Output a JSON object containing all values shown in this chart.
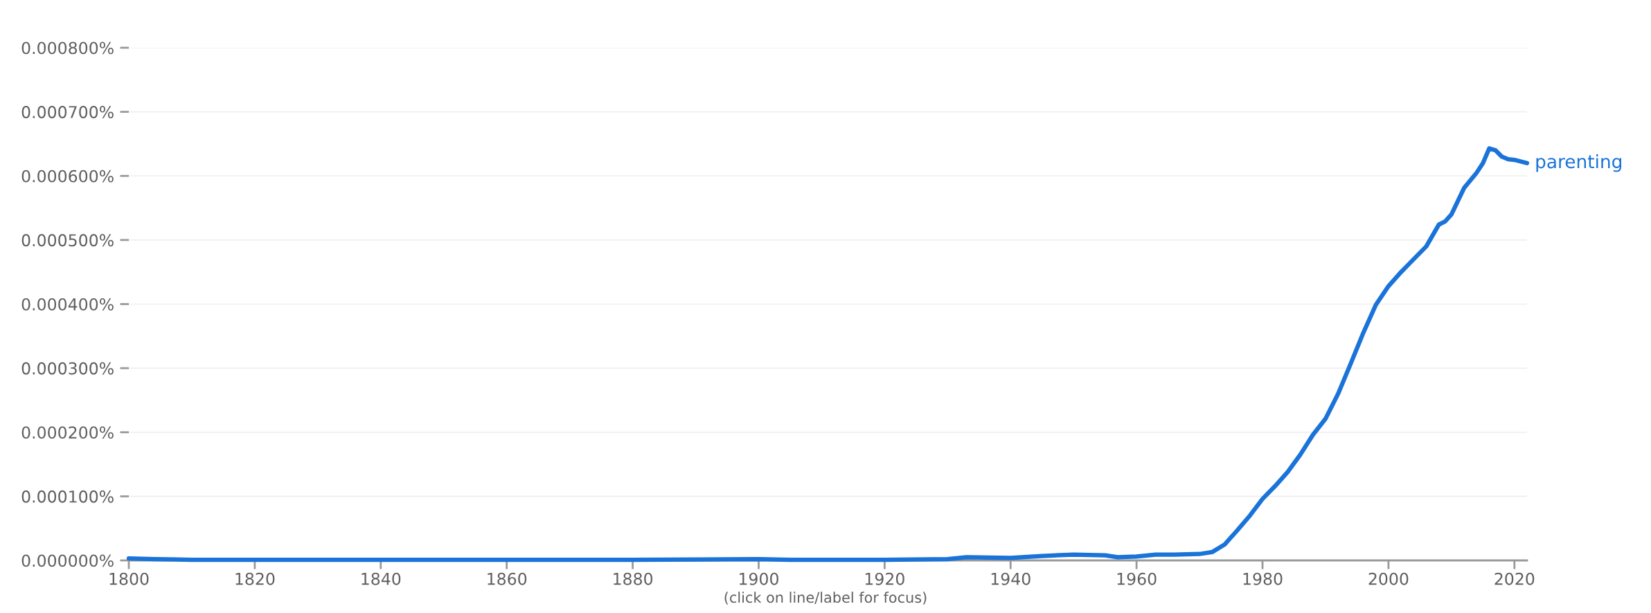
{
  "chart_data": {
    "type": "line",
    "annotations": [
      "(click on line/label for focus)"
    ],
    "series": [
      {
        "name": "parenting",
        "color": "#1a73d8",
        "x": [
          1800,
          1804,
          1810,
          1830,
          1850,
          1880,
          1900,
          1905,
          1920,
          1930,
          1933,
          1940,
          1945,
          1950,
          1955,
          1957,
          1960,
          1963,
          1966,
          1970,
          1972,
          1974,
          1976,
          1978,
          1980,
          1982,
          1984,
          1986,
          1988,
          1990,
          1992,
          1994,
          1996,
          1998,
          2000,
          2002,
          2004,
          2006,
          2008,
          2009,
          2010,
          2012,
          2014,
          2015,
          2016,
          2017,
          2018,
          2019,
          2020,
          2022
        ],
        "values": [
          3e-06,
          2e-06,
          1e-06,
          1e-06,
          1e-06,
          1e-06,
          2e-06,
          1e-06,
          1e-06,
          2e-06,
          5e-06,
          4e-06,
          7e-06,
          9e-06,
          8e-06,
          5e-06,
          6e-06,
          9e-06,
          9e-06,
          1e-05,
          1.3e-05,
          2.5e-05,
          4.7e-05,
          7e-05,
          9.6e-05,
          0.000116,
          0.000138,
          0.000165,
          0.000196,
          0.000221,
          0.00026,
          0.000307,
          0.000355,
          0.000399,
          0.000428,
          0.00045,
          0.00047,
          0.00049,
          0.000524,
          0.000529,
          0.00054,
          0.000581,
          0.000605,
          0.00062,
          0.000643,
          0.00064,
          0.00063,
          0.000626,
          0.000625,
          0.00062
        ]
      }
    ],
    "xlim": [
      1800,
      2022
    ],
    "xticks": [
      1800,
      1820,
      1840,
      1860,
      1880,
      1900,
      1920,
      1940,
      1960,
      1980,
      2000,
      2020
    ],
    "ylim": [
      0,
      0.0008
    ],
    "yticks": [
      {
        "value": 0,
        "label": "0.000000%"
      },
      {
        "value": 0.0001,
        "label": "0.000100%"
      },
      {
        "value": 0.0002,
        "label": "0.000200%"
      },
      {
        "value": 0.0003,
        "label": "0.000300%"
      },
      {
        "value": 0.0004,
        "label": "0.000400%"
      },
      {
        "value": 0.0005,
        "label": "0.000500%"
      },
      {
        "value": 0.0006,
        "label": "0.000600%"
      },
      {
        "value": 0.0007,
        "label": "0.000700%"
      },
      {
        "value": 0.0008,
        "label": "0.000800%"
      }
    ],
    "grid": "y",
    "line_style": "solid",
    "marker": "none"
  }
}
